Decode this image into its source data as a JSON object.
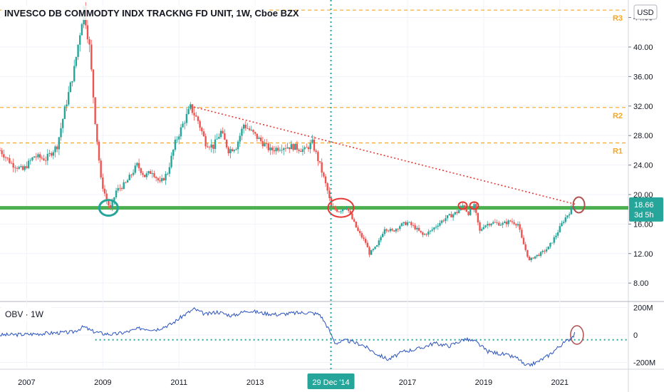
{
  "chart_data": {
    "type": "candlestick",
    "title": "INVESCO DB COMMODTY INDX TRACKNG FD UNIT, 1W, Cboe BZX",
    "currency": "USD",
    "price_axis": {
      "ylim": [
        5.6,
        45.6
      ],
      "ticks": [
        "44.00",
        "40.00",
        "36.00",
        "32.00",
        "28.00",
        "24.00",
        "20.00",
        "16.00",
        "12.00",
        "8.00"
      ],
      "tick_values": [
        44,
        40,
        36,
        32,
        28,
        24,
        20,
        16,
        12,
        8
      ]
    },
    "x_axis": {
      "xlim": [
        2006.3,
        2022.8
      ],
      "ticks": [
        "2007",
        "2009",
        "2011",
        "2013",
        "2017",
        "2019",
        "2021"
      ],
      "tick_values": [
        2007,
        2009,
        2011,
        2013,
        2017,
        2019,
        2021
      ],
      "crosshair_label": "29 Dec '14",
      "crosshair_value": 2014.99
    },
    "last_price": {
      "label": "18.66",
      "countdown": "3d 5h",
      "value": 18.66,
      "color": "#26a69a"
    },
    "price_path": [
      [
        2006.3,
        26.0
      ],
      [
        2006.6,
        24.2
      ],
      [
        2006.9,
        23.3
      ],
      [
        2007.2,
        25.2
      ],
      [
        2007.5,
        24.8
      ],
      [
        2007.8,
        26.6
      ],
      [
        2008.0,
        31.5
      ],
      [
        2008.25,
        37.0
      ],
      [
        2008.5,
        45.3
      ],
      [
        2008.65,
        40.0
      ],
      [
        2008.8,
        30.0
      ],
      [
        2008.95,
        22.0
      ],
      [
        2009.1,
        19.2
      ],
      [
        2009.2,
        18.0
      ],
      [
        2009.35,
        20.5
      ],
      [
        2009.6,
        21.5
      ],
      [
        2009.9,
        24.0
      ],
      [
        2010.1,
        22.5
      ],
      [
        2010.3,
        23.2
      ],
      [
        2010.5,
        21.5
      ],
      [
        2010.7,
        23.0
      ],
      [
        2010.9,
        27.0
      ],
      [
        2011.1,
        29.5
      ],
      [
        2011.3,
        31.8
      ],
      [
        2011.5,
        30.0
      ],
      [
        2011.7,
        27.0
      ],
      [
        2011.9,
        26.5
      ],
      [
        2012.1,
        28.5
      ],
      [
        2012.3,
        26.0
      ],
      [
        2012.5,
        26.5
      ],
      [
        2012.7,
        29.5
      ],
      [
        2012.9,
        28.5
      ],
      [
        2013.1,
        27.5
      ],
      [
        2013.4,
        26.0
      ],
      [
        2013.7,
        26.5
      ],
      [
        2014.0,
        26.5
      ],
      [
        2014.3,
        26.0
      ],
      [
        2014.5,
        27.0
      ],
      [
        2014.7,
        24.0
      ],
      [
        2014.9,
        20.5
      ],
      [
        2015.0,
        18.2
      ],
      [
        2015.2,
        17.8
      ],
      [
        2015.4,
        18.4
      ],
      [
        2015.5,
        17.2
      ],
      [
        2015.7,
        15.0
      ],
      [
        2015.9,
        13.5
      ],
      [
        2016.0,
        12.0
      ],
      [
        2016.2,
        13.0
      ],
      [
        2016.4,
        15.5
      ],
      [
        2016.6,
        15.0
      ],
      [
        2016.8,
        15.8
      ],
      [
        2017.0,
        16.2
      ],
      [
        2017.2,
        15.5
      ],
      [
        2017.4,
        14.5
      ],
      [
        2017.6,
        15.0
      ],
      [
        2017.8,
        16.0
      ],
      [
        2018.0,
        16.8
      ],
      [
        2018.3,
        17.6
      ],
      [
        2018.45,
        18.5
      ],
      [
        2018.6,
        17.5
      ],
      [
        2018.75,
        18.4
      ],
      [
        2018.9,
        15.0
      ],
      [
        2019.0,
        15.8
      ],
      [
        2019.2,
        16.2
      ],
      [
        2019.5,
        16.0
      ],
      [
        2019.7,
        16.4
      ],
      [
        2019.9,
        16.0
      ],
      [
        2020.0,
        14.0
      ],
      [
        2020.2,
        11.0
      ],
      [
        2020.3,
        11.5
      ],
      [
        2020.5,
        12.0
      ],
      [
        2020.7,
        12.8
      ],
      [
        2020.9,
        14.5
      ],
      [
        2021.1,
        16.5
      ],
      [
        2021.3,
        18.0
      ],
      [
        2021.4,
        18.66
      ]
    ],
    "horizontal_lines": [
      {
        "label": "R3",
        "value": 45.0,
        "color": "#f5a623",
        "style": "dashed"
      },
      {
        "label": "R2",
        "value": 31.8,
        "color": "#f5a623",
        "style": "dashed"
      },
      {
        "label": "R1",
        "value": 27.0,
        "color": "#f5a623",
        "style": "dashed"
      },
      {
        "label": "",
        "value": 18.2,
        "color": "#4caf50",
        "style": "solid"
      }
    ],
    "trendline": {
      "from": [
        2011.3,
        32.0
      ],
      "to": [
        2021.4,
        18.7
      ],
      "color": "#e53935",
      "style": "dotted"
    },
    "highlights_price": [
      {
        "x": 2009.15,
        "y": 18.2,
        "color": "#26a69a"
      },
      {
        "x": 2015.25,
        "y": 18.2,
        "color": "#e53935"
      },
      {
        "x": 2018.45,
        "y": 18.5,
        "color": "#e53935"
      },
      {
        "x": 2018.75,
        "y": 18.5,
        "color": "#e53935"
      },
      {
        "x": 2021.5,
        "y": 18.6,
        "color": "#b05050"
      }
    ],
    "obv": {
      "label": "OBV · 1W",
      "unit": "M",
      "ylim": [
        -240,
        240
      ],
      "ticks": [
        "200M",
        "0",
        "-200M"
      ],
      "tick_values": [
        200,
        0,
        -200
      ],
      "level_line": {
        "value": -35,
        "color": "#26a69a",
        "style": "dotted"
      },
      "series": [
        [
          2006.3,
          0
        ],
        [
          2007.0,
          5
        ],
        [
          2007.7,
          15
        ],
        [
          2008.2,
          20
        ],
        [
          2008.5,
          60
        ],
        [
          2008.7,
          30
        ],
        [
          2009.0,
          10
        ],
        [
          2009.3,
          5
        ],
        [
          2009.6,
          20
        ],
        [
          2010.0,
          50
        ],
        [
          2010.4,
          40
        ],
        [
          2010.8,
          80
        ],
        [
          2011.1,
          140
        ],
        [
          2011.4,
          190
        ],
        [
          2011.7,
          150
        ],
        [
          2012.0,
          170
        ],
        [
          2012.4,
          140
        ],
        [
          2012.8,
          180
        ],
        [
          2013.2,
          160
        ],
        [
          2013.6,
          150
        ],
        [
          2014.0,
          160
        ],
        [
          2014.4,
          165
        ],
        [
          2014.7,
          150
        ],
        [
          2014.9,
          60
        ],
        [
          2015.1,
          -60
        ],
        [
          2015.4,
          -40
        ],
        [
          2015.8,
          -70
        ],
        [
          2016.2,
          -140
        ],
        [
          2016.5,
          -180
        ],
        [
          2016.9,
          -120
        ],
        [
          2017.3,
          -100
        ],
        [
          2017.7,
          -60
        ],
        [
          2018.1,
          -80
        ],
        [
          2018.5,
          -30
        ],
        [
          2018.8,
          -50
        ],
        [
          2019.1,
          -120
        ],
        [
          2019.5,
          -140
        ],
        [
          2019.9,
          -170
        ],
        [
          2020.1,
          -230
        ],
        [
          2020.4,
          -200
        ],
        [
          2020.7,
          -150
        ],
        [
          2021.0,
          -80
        ],
        [
          2021.3,
          -20
        ],
        [
          2021.4,
          10
        ]
      ],
      "highlight": {
        "x": 2021.45,
        "y": 0,
        "color": "#b05050"
      }
    }
  }
}
